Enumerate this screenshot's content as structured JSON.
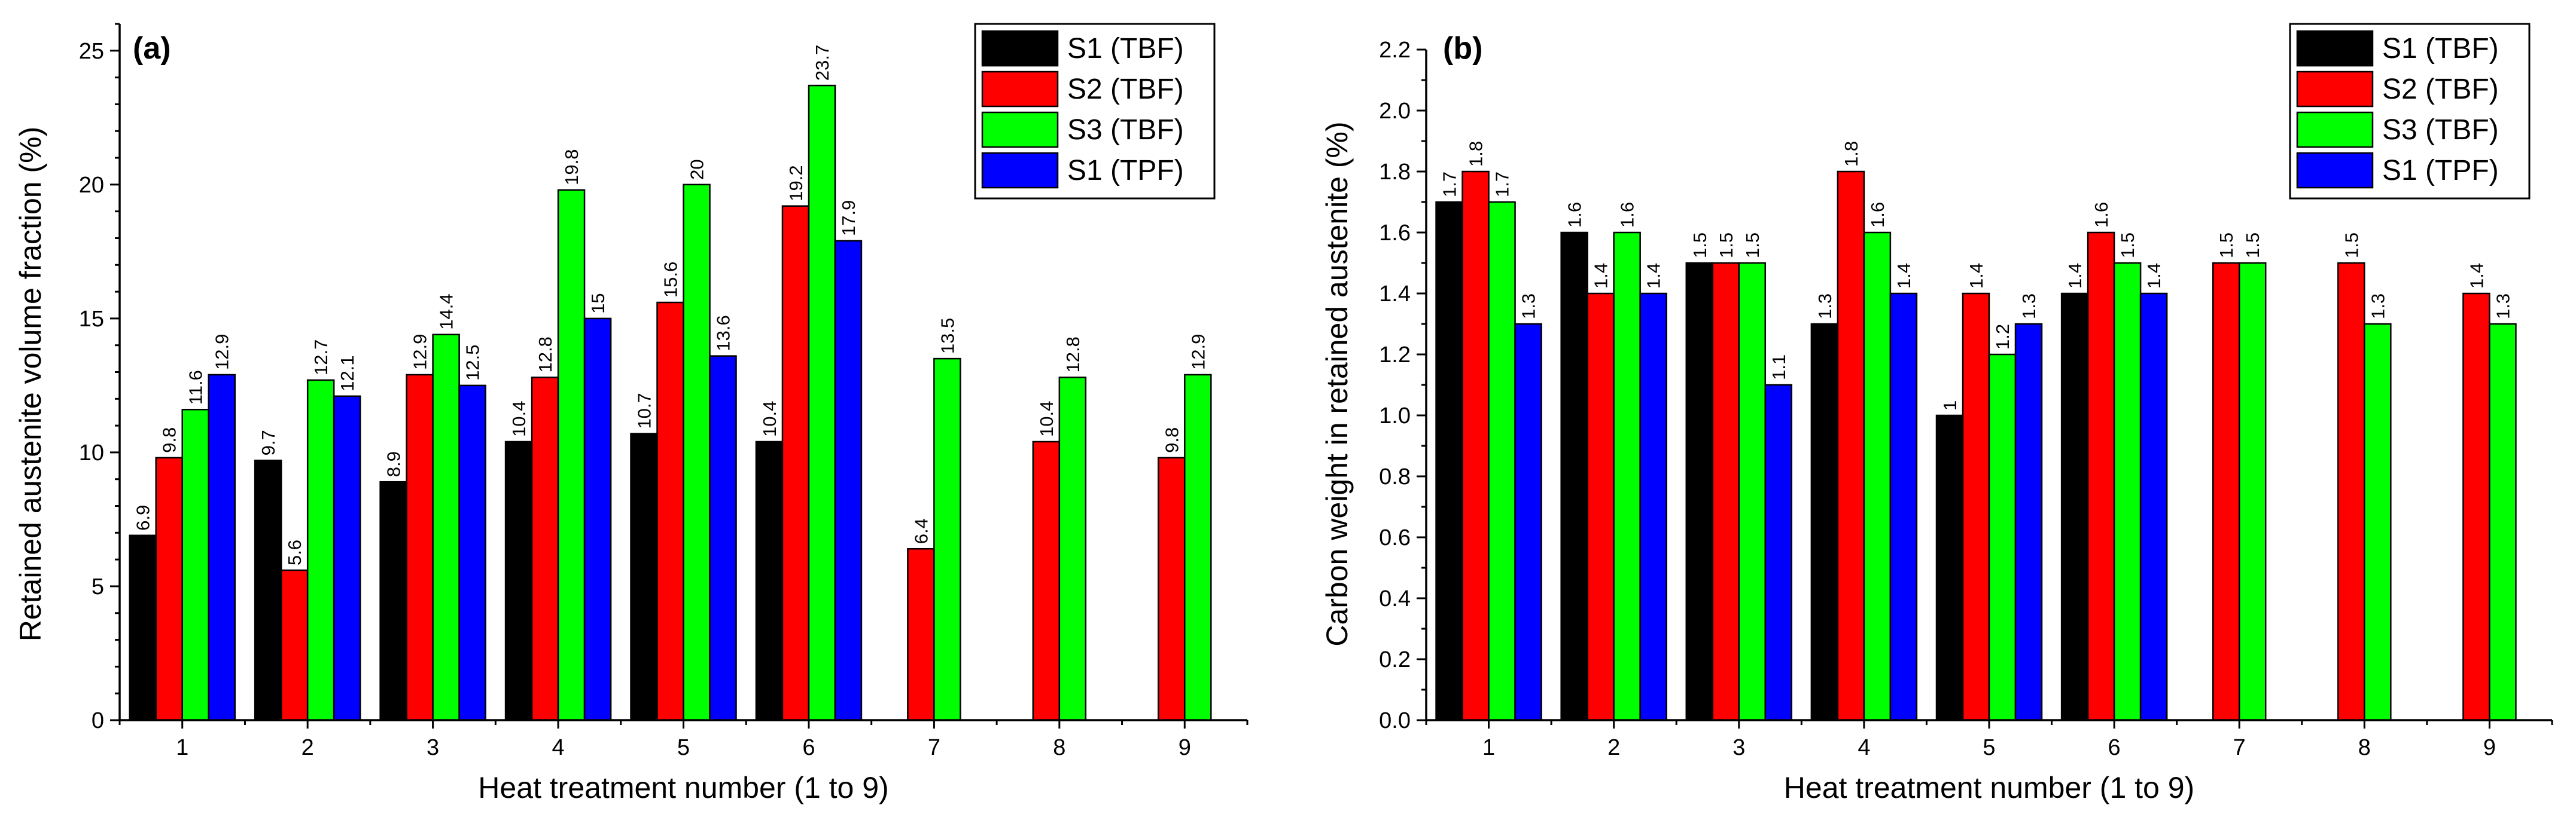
{
  "chart_data": [
    {
      "type": "bar",
      "panel_label": "(a)",
      "categories": [
        "1",
        "2",
        "3",
        "4",
        "5",
        "6",
        "7",
        "8",
        "9"
      ],
      "series": [
        {
          "name": "S1 (TBF)",
          "color": "#000000",
          "values": [
            6.9,
            9.7,
            8.9,
            10.4,
            10.7,
            10.4,
            null,
            null,
            null
          ],
          "labels": [
            "6.9",
            "9.7",
            "8.9",
            "10.4",
            "10.7",
            "10.4",
            null,
            null,
            null
          ]
        },
        {
          "name": "S2 (TBF)",
          "color": "#ff0000",
          "values": [
            9.8,
            5.6,
            12.9,
            12.8,
            15.6,
            19.2,
            6.4,
            10.4,
            9.8
          ],
          "labels": [
            "9.8",
            "5.6",
            "12.9",
            "12.8",
            "15.6",
            "19.2",
            "6.4",
            "10.4",
            "9.8"
          ]
        },
        {
          "name": "S3 (TBF)",
          "color": "#00ff00",
          "values": [
            11.6,
            12.7,
            14.4,
            19.8,
            20,
            23.7,
            13.5,
            12.8,
            12.9
          ],
          "labels": [
            "11.6",
            "12.7",
            "14.4",
            "19.8",
            "20",
            "23.7",
            "13.5",
            "12.8",
            "12.9"
          ]
        },
        {
          "name": "S1 (TPF)",
          "color": "#0000ff",
          "values": [
            12.9,
            12.1,
            12.5,
            15,
            13.6,
            17.9,
            null,
            null,
            null
          ],
          "labels": [
            "12.9",
            "12.1",
            "12.5",
            "15",
            "13.6",
            "17.9",
            null,
            null,
            null
          ]
        }
      ],
      "xlabel": "Heat treatment number (1 to 9)",
      "ylabel": "Retained austenite volume fraction (%)",
      "ylim": [
        0,
        26
      ],
      "yticks": [
        0,
        5,
        10,
        15,
        20,
        25
      ],
      "ytick_labels": [
        "0",
        "5",
        "10",
        "15",
        "20",
        "25"
      ],
      "minor_step": 1,
      "legend_position": "top-right"
    },
    {
      "type": "bar",
      "panel_label": "(b)",
      "categories": [
        "1",
        "2",
        "3",
        "4",
        "5",
        "6",
        "7",
        "8",
        "9"
      ],
      "series": [
        {
          "name": "S1 (TBF)",
          "color": "#000000",
          "values": [
            1.7,
            1.6,
            1.5,
            1.3,
            1.0,
            1.4,
            null,
            null,
            null
          ],
          "labels": [
            "1.7",
            "1.6",
            "1.5",
            "1.3",
            "1",
            "1.4",
            null,
            null,
            null
          ]
        },
        {
          "name": "S2 (TBF)",
          "color": "#ff0000",
          "values": [
            1.8,
            1.4,
            1.5,
            1.8,
            1.4,
            1.6,
            1.5,
            1.5,
            1.4
          ],
          "labels": [
            "1.8",
            "1.4",
            "1.5",
            "1.8",
            "1.4",
            "1.6",
            "1.5",
            "1.5",
            "1.4"
          ]
        },
        {
          "name": "S3 (TBF)",
          "color": "#00ff00",
          "values": [
            1.7,
            1.6,
            1.5,
            1.6,
            1.2,
            1.5,
            1.5,
            1.3,
            1.3
          ],
          "labels": [
            "1.7",
            "1.6",
            "1.5",
            "1.6",
            "1.2",
            "1.5",
            "1.5",
            "1.3",
            "1.3"
          ]
        },
        {
          "name": "S1 (TPF)",
          "color": "#0000ff",
          "values": [
            1.3,
            1.4,
            1.1,
            1.4,
            1.3,
            1.4,
            null,
            null,
            null
          ],
          "labels": [
            "1.3",
            "1.4",
            "1.1",
            "1.4",
            "1.3",
            "1.4",
            null,
            null,
            null
          ]
        }
      ],
      "xlabel": "Heat treatment number (1 to 9)",
      "ylabel": "Carbon weight in retained austenite (%)",
      "ylim": [
        0,
        2.2
      ],
      "yticks": [
        0,
        0.2,
        0.4,
        0.6,
        0.8,
        1.0,
        1.2,
        1.4,
        1.6,
        1.8,
        2.0,
        2.2
      ],
      "ytick_labels": [
        "0.0",
        "0.2",
        "0.4",
        "0.6",
        "0.8",
        "1.0",
        "1.2",
        "1.4",
        "1.6",
        "1.8",
        "2.0",
        "2.2"
      ],
      "minor_step": 0.1,
      "legend_position": "top-right"
    }
  ]
}
